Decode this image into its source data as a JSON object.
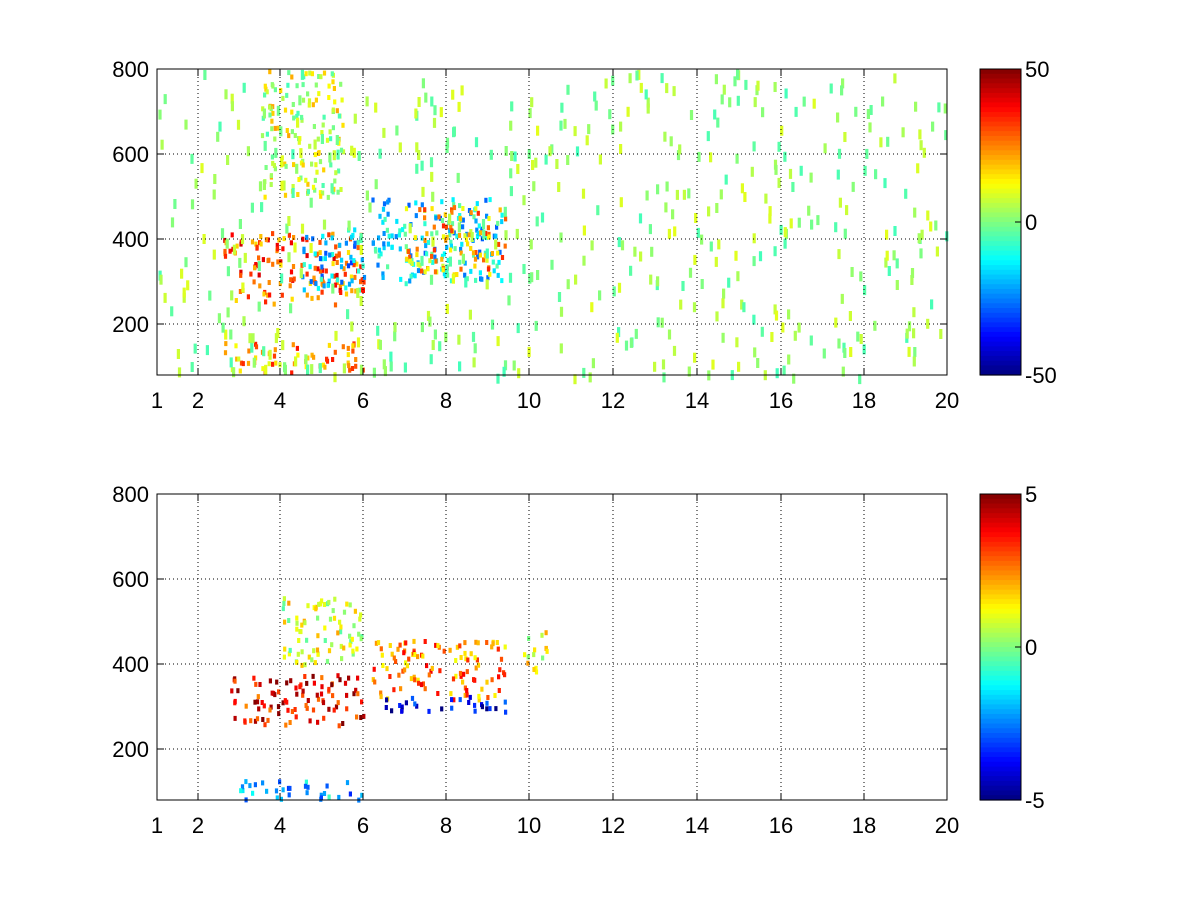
{
  "chart_data": [
    {
      "type": "heatmap",
      "x_ticks": [
        1,
        2,
        4,
        6,
        8,
        10,
        12,
        14,
        16,
        18,
        20
      ],
      "y_ticks": [
        200,
        400,
        600,
        800
      ],
      "xlim": [
        1,
        20
      ],
      "ylim": [
        80,
        800
      ],
      "grid": true,
      "colormap": "jet",
      "colorbar": {
        "range": [
          -50,
          50
        ],
        "labels": [
          "50",
          "0",
          "-50"
        ]
      },
      "clusters": [
        {
          "x": [
            2.6,
            6.0
          ],
          "y": [
            250,
            420
          ],
          "value": 28
        },
        {
          "x": [
            4.5,
            6.0
          ],
          "y": [
            280,
            430
          ],
          "value": -18
        },
        {
          "x": [
            2.6,
            6.0
          ],
          "y": [
            90,
            160
          ],
          "value": 22
        },
        {
          "x": [
            6.2,
            9.4
          ],
          "y": [
            300,
            500
          ],
          "value": -15
        },
        {
          "x": [
            7.0,
            9.4
          ],
          "y": [
            320,
            480
          ],
          "value": 20
        },
        {
          "x": [
            3.5,
            5.5
          ],
          "y": [
            500,
            800
          ],
          "value": 8
        },
        {
          "x": [
            1.0,
            20.0
          ],
          "y": [
            80,
            800
          ],
          "value": 2
        }
      ]
    },
    {
      "type": "heatmap",
      "x_ticks": [
        1,
        2,
        4,
        6,
        8,
        10,
        12,
        14,
        16,
        18,
        20
      ],
      "y_ticks": [
        200,
        400,
        600,
        800
      ],
      "xlim": [
        1,
        20
      ],
      "ylim": [
        80,
        800
      ],
      "grid": true,
      "colormap": "jet",
      "colorbar": {
        "range": [
          -5,
          5
        ],
        "labels": [
          "5",
          "0",
          "-5"
        ]
      },
      "clusters": [
        {
          "x": [
            2.7,
            6.0
          ],
          "y": [
            260,
            380
          ],
          "value": 3.8
        },
        {
          "x": [
            6.2,
            9.4
          ],
          "y": [
            320,
            460
          ],
          "value": 2.5
        },
        {
          "x": [
            6.5,
            9.4
          ],
          "y": [
            290,
            330
          ],
          "value": -4
        },
        {
          "x": [
            3.0,
            6.0
          ],
          "y": [
            85,
            130
          ],
          "value": -2
        },
        {
          "x": [
            4.0,
            6.0
          ],
          "y": [
            400,
            560
          ],
          "value": 0.8
        },
        {
          "x": [
            9.8,
            10.4
          ],
          "y": [
            380,
            480
          ],
          "value": 1.2
        }
      ]
    }
  ]
}
